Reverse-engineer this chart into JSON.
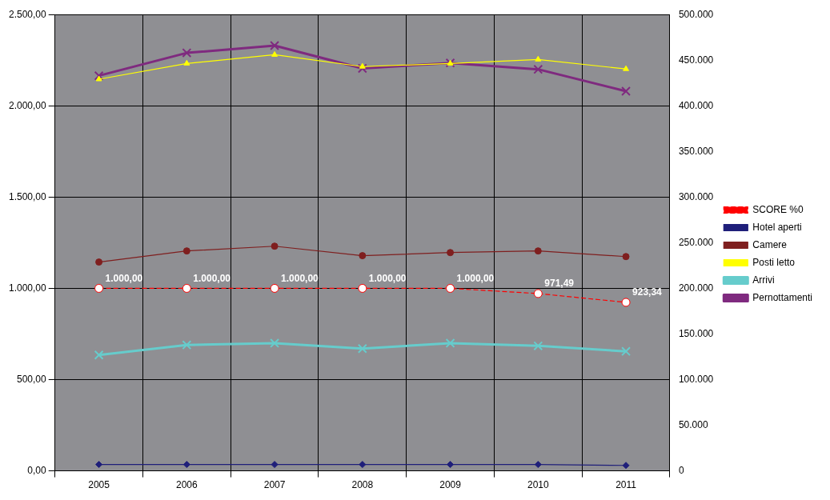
{
  "chart_data": {
    "type": "line",
    "categories": [
      "2005",
      "2006",
      "2007",
      "2008",
      "2009",
      "2010",
      "2011"
    ],
    "ylim": [
      0,
      2500
    ],
    "yticks": [
      {
        "value": 0,
        "label": "0,00"
      },
      {
        "value": 500,
        "label": "500,00"
      },
      {
        "value": 1000,
        "label": "1.000,00"
      },
      {
        "value": 1500,
        "label": "1.500,00"
      },
      {
        "value": 2000,
        "label": "2.000,00"
      },
      {
        "value": 2500,
        "label": "2.500,00"
      }
    ],
    "y2lim": [
      0,
      500000
    ],
    "y2ticks": [
      {
        "value": 0,
        "label": "0"
      },
      {
        "value": 50000,
        "label": "50.000"
      },
      {
        "value": 100000,
        "label": "100.000"
      },
      {
        "value": 150000,
        "label": "150.000"
      },
      {
        "value": 200000,
        "label": "200.000"
      },
      {
        "value": 250000,
        "label": "250.000"
      },
      {
        "value": 300000,
        "label": "300.000"
      },
      {
        "value": 350000,
        "label": "350.000"
      },
      {
        "value": 400000,
        "label": "400.000"
      },
      {
        "value": 450000,
        "label": "450.000"
      },
      {
        "value": 500000,
        "label": "500.000"
      }
    ],
    "grid": true,
    "legend": "right",
    "series": [
      {
        "name": "SCORE %0",
        "color": "#ff0000",
        "marker": "circle",
        "line_style": "dashed",
        "values": [
          1000,
          1000,
          1000,
          1000,
          1000,
          971.49,
          923.34
        ],
        "value_labels": [
          "1.000,00",
          "1.000,00",
          "1.000,00",
          "1.000,00",
          "1.000,00",
          "971,49",
          "923,34"
        ]
      },
      {
        "name": "Hotel aperti",
        "color": "#1f1f7a",
        "marker": "diamond",
        "line_style": "solid",
        "values": [
          35,
          35,
          35,
          35,
          35,
          35,
          30
        ]
      },
      {
        "name": "Camere",
        "color": "#7f1f1f",
        "marker": "circle",
        "line_style": "solid",
        "values": [
          1144,
          1205,
          1231,
          1179,
          1196,
          1205,
          1174
        ]
      },
      {
        "name": "Posti letto",
        "color": "#ffff00",
        "marker": "triangle",
        "line_style": "solid",
        "values": [
          2146,
          2232,
          2280,
          2215,
          2232,
          2254,
          2202
        ]
      },
      {
        "name": "Arrivi",
        "color": "#66cccc",
        "marker": "cross",
        "line_style": "solid",
        "axis": "y2",
        "values": [
          127000,
          138000,
          140000,
          134000,
          140000,
          137000,
          131000
        ]
      },
      {
        "name": "Pernottamenti",
        "color": "#7f2a7f",
        "marker": "cross",
        "line_style": "solid",
        "axis": "y2",
        "values": [
          433000,
          458000,
          466000,
          441000,
          447000,
          440000,
          416000
        ]
      }
    ]
  }
}
